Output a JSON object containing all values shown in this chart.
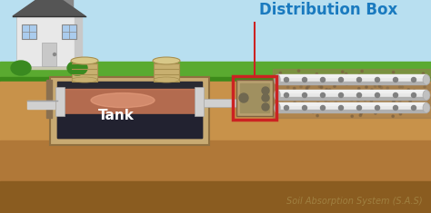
{
  "sky_color": "#b8dff0",
  "grass_color": "#5aaa30",
  "grass_dark_color": "#3d8a1a",
  "soil_top_color": "#c8924a",
  "soil_mid_color": "#b07838",
  "soil_bot_color": "#8a5c20",
  "tank_border_color": "#c8aa72",
  "tank_inner_dark": "#2a2a32",
  "tank_scum_color": "#cc7755",
  "tank_scum_hi": "#e8a080",
  "tank_label": "Tank",
  "tank_label_color": "#ffffff",
  "cap_color": "#c8b070",
  "cap_ring_color": "#a89050",
  "pipe_color": "#d0d0d0",
  "pipe_shadow": "#a0a0a0",
  "pipe_dot_color": "#808080",
  "dbox_color": "#b8a070",
  "dbox_border": "#cc2222",
  "dbox_hole_color": "#706850",
  "arrow_color": "#1a7abf",
  "title": "Distribution Box",
  "title_color": "#1a7abf",
  "sas_label": "Soil Absorption System (S.A.S)",
  "sas_label_color": "#a08040",
  "house_wall": "#e8e8e8",
  "house_wall_shadow": "#c8c8c8",
  "house_roof": "#555555",
  "house_chimney": "#888888",
  "house_door": "#c8c8c8",
  "house_window": "#aaccee",
  "house_base": "#c8c8b0",
  "bush_color": "#3a8a20",
  "pipe_glow": "#e8e8e8",
  "gravel_color": "#9a7a50",
  "pole_color": "#8a7050"
}
